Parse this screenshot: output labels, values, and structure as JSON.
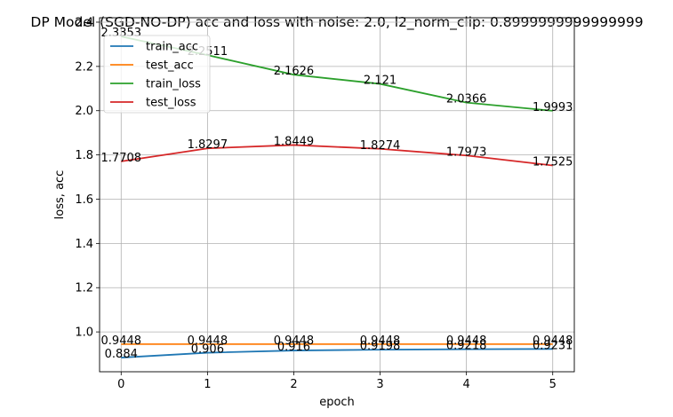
{
  "chart_data": {
    "type": "line",
    "title": "DP Model (SGD-NO-DP) acc and loss with noise: 2.0, l2_norm_clip: 0.8999999999999999",
    "xlabel": "epoch",
    "ylabel": "loss, acc",
    "x": [
      0,
      1,
      2,
      3,
      4,
      5
    ],
    "xlim": [
      -0.25,
      5.25
    ],
    "ylim": [
      0.82,
      2.42
    ],
    "xticks": [
      "0",
      "1",
      "2",
      "3",
      "4",
      "5"
    ],
    "yticks": [
      "1.0",
      "1.2",
      "1.4",
      "1.6",
      "1.8",
      "2.0",
      "2.2",
      "2.4"
    ],
    "grid": true,
    "legend_position": "top-left",
    "series": [
      {
        "name": "train_acc",
        "color": "#1f77b4",
        "values": [
          0.884,
          0.906,
          0.916,
          0.9198,
          0.9218,
          0.9231
        ],
        "labels": [
          "0.884",
          "0.906",
          "0.916",
          "0.9198",
          "0.9218",
          "0.9231"
        ]
      },
      {
        "name": "test_acc",
        "color": "#ff7f0e",
        "values": [
          0.9448,
          0.9448,
          0.9448,
          0.9448,
          0.9448,
          0.9448
        ],
        "labels": [
          "0.9448",
          "0.9448",
          "0.9448",
          "0.9448",
          "0.9448",
          "0.9448"
        ]
      },
      {
        "name": "train_loss",
        "color": "#2ca02c",
        "values": [
          2.3353,
          2.2511,
          2.1626,
          2.121,
          2.0366,
          1.9993
        ],
        "labels": [
          "2.3353",
          "2.2511",
          "2.1626",
          "2.121",
          "2.0366",
          "1.9993"
        ]
      },
      {
        "name": "test_loss",
        "color": "#d62728",
        "values": [
          1.7708,
          1.8297,
          1.8449,
          1.8274,
          1.7973,
          1.7525
        ],
        "labels": [
          "1.7708",
          "1.8297",
          "1.8449",
          "1.8274",
          "1.7973",
          "1.7525"
        ]
      }
    ]
  }
}
